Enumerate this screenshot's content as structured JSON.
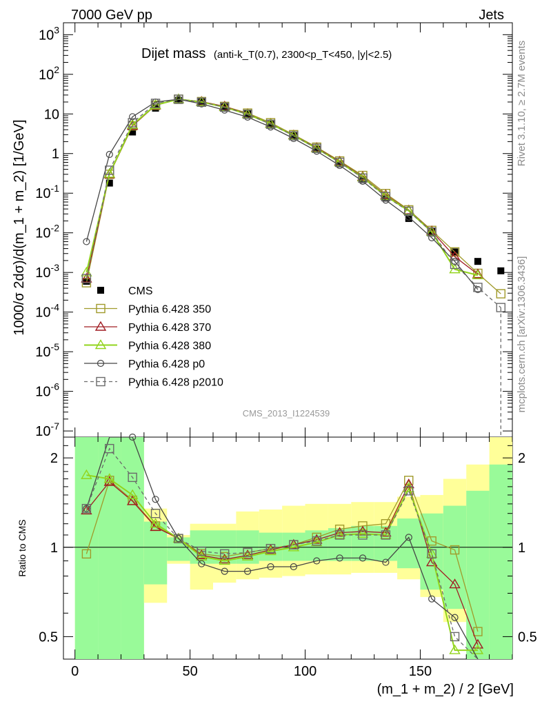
{
  "header": {
    "left": "7000 GeV pp",
    "right": "Jets"
  },
  "side_labels": {
    "rivet": "Rivet 3.1.10, ≥ 2.7M events",
    "mcplots": "mcplots.cern.ch [arXiv:1306.3436]"
  },
  "plot_title": {
    "main": "Dijet mass",
    "detail": "(anti-k_T(0.7), 2300<p_T<450, |y|<2.5)"
  },
  "analysis_id": "CMS_2013_I1224539",
  "colors": {
    "cms": "#000000",
    "p350": "#a09a2a",
    "p370": "#a01c22",
    "p380": "#92d41c",
    "p0": "#454545",
    "p2010": "#6a6a6a",
    "band_inner": "#99fa99",
    "band_outer": "#ffff99"
  },
  "chart_data": [
    {
      "type": "line",
      "panel": "main",
      "ylabel": "1000/σ 2dσ)/d(m_1 + m_2) [1/GeV]",
      "yscale": "log",
      "ylim": [
        7e-08,
        2000
      ],
      "xlim": [
        -5,
        190
      ],
      "x": [
        5,
        15,
        25,
        35,
        45,
        55,
        65,
        75,
        85,
        95,
        105,
        115,
        125,
        135,
        145,
        155,
        165,
        175,
        185
      ],
      "series": [
        {
          "name": "CMS",
          "style": "marker-square",
          "values": [
            0.0006,
            0.18,
            3.5,
            14,
            22,
            20,
            15,
            10,
            5.5,
            2.8,
            1.3,
            0.55,
            0.22,
            0.075,
            0.023,
            0.011,
            0.0033,
            0.0019,
            0.0011
          ]
        },
        {
          "name": "Pythia 6.428 350",
          "style": "open-square",
          "values": [
            0.00055,
            0.3,
            5.0,
            16.5,
            23.5,
            20.5,
            15.5,
            10.5,
            6.0,
            3.0,
            1.45,
            0.65,
            0.28,
            0.098,
            0.038,
            0.0115,
            0.0033,
            0.00095,
            0.00029
          ]
        },
        {
          "name": "Pythia 6.428 370",
          "style": "open-triangle",
          "values": [
            0.0007,
            0.3,
            5.0,
            16.5,
            23.5,
            20.5,
            15.5,
            10.0,
            5.7,
            2.9,
            1.4,
            0.63,
            0.26,
            0.09,
            0.037,
            0.011,
            0.0025,
            0.0009,
            null
          ]
        },
        {
          "name": "Pythia 6.428 380",
          "style": "open-triangle",
          "values": [
            0.001,
            0.31,
            5.3,
            16.8,
            23.5,
            20.0,
            14.8,
            9.8,
            5.6,
            2.85,
            1.35,
            0.6,
            0.25,
            0.085,
            0.036,
            0.0105,
            0.0012,
            0.00085,
            null
          ]
        },
        {
          "name": "Pythia 6.428 p0",
          "style": "open-circle",
          "values": [
            0.006,
            0.95,
            8.5,
            20.0,
            23.5,
            18.0,
            12.5,
            8.3,
            4.7,
            2.4,
            1.15,
            0.5,
            0.2,
            0.067,
            0.025,
            0.0075,
            0.0019,
            0.00037,
            null
          ]
        },
        {
          "name": "Pythia 6.428 p2010",
          "style": "dashed-open-square",
          "values": [
            0.0007,
            0.38,
            6.0,
            18.5,
            23.5,
            19.8,
            14.8,
            9.8,
            5.5,
            2.8,
            1.35,
            0.6,
            0.24,
            0.082,
            0.035,
            0.0105,
            0.0016,
            0.00042,
            0.00013
          ]
        }
      ],
      "legend_placement": "lower-left"
    },
    {
      "type": "line",
      "panel": "ratio",
      "ylabel": "Ratio to CMS",
      "yscale": "log",
      "ylim": [
        0.42,
        2.35
      ],
      "ytick_labels": [
        "0.5",
        "1",
        "2"
      ],
      "xlabel": "(m_1 + m_2) / 2 [GeV]",
      "xtick_labels": [
        "0",
        "50",
        "100",
        "150"
      ],
      "x": [
        5,
        15,
        25,
        35,
        45,
        55,
        65,
        75,
        85,
        95,
        105,
        115,
        125,
        135,
        145,
        155,
        165,
        175,
        185
      ],
      "bands": {
        "edges": [
          0,
          10,
          20,
          30,
          40,
          50,
          60,
          70,
          80,
          90,
          100,
          110,
          120,
          130,
          140,
          150,
          160,
          170,
          180,
          190
        ],
        "inner_lo": [
          0.3,
          0.3,
          0.3,
          0.75,
          0.9,
          0.88,
          0.88,
          0.88,
          0.9,
          0.9,
          0.9,
          0.9,
          0.9,
          0.9,
          0.85,
          0.72,
          0.62,
          0.3,
          0.3
        ],
        "inner_hi": [
          2.4,
          2.4,
          2.4,
          1.22,
          1.08,
          1.14,
          1.14,
          1.14,
          1.12,
          1.12,
          1.14,
          1.16,
          1.18,
          1.18,
          1.25,
          1.3,
          1.38,
          1.55,
          1.9
        ],
        "outer_lo": [
          0.3,
          0.6,
          0.3,
          0.65,
          0.88,
          0.72,
          0.76,
          0.78,
          0.79,
          0.8,
          0.81,
          0.81,
          0.82,
          0.82,
          0.78,
          0.68,
          0.56,
          0.3,
          0.3
        ],
        "outer_hi": [
          2.4,
          2.4,
          2.4,
          1.35,
          1.1,
          1.2,
          1.2,
          1.32,
          1.34,
          1.38,
          1.4,
          1.4,
          1.42,
          1.42,
          1.48,
          1.5,
          1.7,
          1.9,
          2.4
        ]
      },
      "series": [
        {
          "name": "Pythia 6.428 350",
          "values": [
            0.95,
            1.68,
            1.44,
            1.18,
            1.07,
            0.95,
            0.93,
            0.96,
            0.99,
            1.02,
            1.08,
            1.15,
            1.18,
            1.2,
            1.68,
            1.05,
            0.98,
            0.52,
            null
          ]
        },
        {
          "name": "Pythia 6.428 370",
          "values": [
            1.33,
            1.66,
            1.43,
            1.17,
            1.07,
            0.94,
            0.91,
            0.94,
            0.98,
            1.02,
            1.06,
            1.12,
            1.13,
            1.12,
            1.63,
            0.89,
            0.75,
            0.47,
            null
          ]
        },
        {
          "name": "Pythia 6.428 380",
          "values": [
            1.75,
            1.7,
            1.5,
            1.2,
            1.07,
            0.93,
            0.9,
            0.93,
            0.97,
            1.0,
            1.04,
            1.1,
            1.11,
            1.1,
            1.58,
            0.95,
            0.45,
            0.45,
            null
          ]
        },
        {
          "name": "Pythia 6.428 p0",
          "values": [
            1.35,
            2.65,
            2.35,
            1.45,
            1.07,
            0.88,
            0.83,
            0.83,
            0.86,
            0.86,
            0.9,
            0.92,
            0.92,
            0.89,
            1.08,
            0.67,
            0.58,
            0.23,
            null
          ]
        },
        {
          "name": "Pythia 6.428 p2010",
          "values": [
            1.35,
            2.15,
            1.72,
            1.3,
            1.07,
            0.97,
            0.95,
            0.96,
            0.99,
            1.02,
            1.05,
            1.1,
            1.1,
            1.1,
            1.55,
            0.95,
            0.5,
            0.4,
            null
          ]
        }
      ]
    }
  ]
}
